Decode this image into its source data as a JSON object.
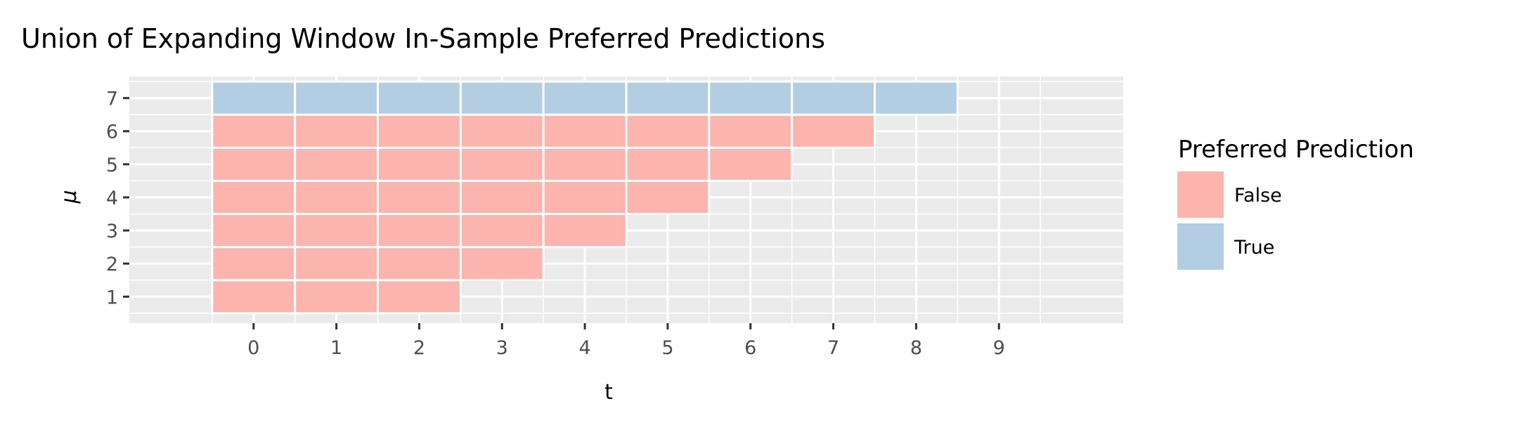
{
  "chart_data": {
    "type": "heatmap",
    "title": "Union of Expanding Window In-Sample Preferred Predictions",
    "xlabel": "t",
    "ylabel": "μ",
    "x_ticks": [
      "0",
      "1",
      "2",
      "3",
      "4",
      "5",
      "6",
      "7",
      "8",
      "9"
    ],
    "y_ticks": [
      "1",
      "2",
      "3",
      "4",
      "5",
      "6",
      "7"
    ],
    "xlim": [
      -1.5,
      10.5
    ],
    "ylim": [
      0.2,
      7.65
    ],
    "grid": true,
    "legend": {
      "title": "Preferred Prediction",
      "placement": "right",
      "entries": [
        {
          "label": "False",
          "color": "#fbb4ae"
        },
        {
          "label": "True",
          "color": "#b3cde3"
        }
      ]
    },
    "cells": [
      {
        "t": 0,
        "mu": 1,
        "value": "False"
      },
      {
        "t": 0,
        "mu": 2,
        "value": "False"
      },
      {
        "t": 0,
        "mu": 3,
        "value": "False"
      },
      {
        "t": 0,
        "mu": 4,
        "value": "False"
      },
      {
        "t": 0,
        "mu": 5,
        "value": "False"
      },
      {
        "t": 0,
        "mu": 6,
        "value": "False"
      },
      {
        "t": 0,
        "mu": 7,
        "value": "True"
      },
      {
        "t": 1,
        "mu": 1,
        "value": "False"
      },
      {
        "t": 1,
        "mu": 2,
        "value": "False"
      },
      {
        "t": 1,
        "mu": 3,
        "value": "False"
      },
      {
        "t": 1,
        "mu": 4,
        "value": "False"
      },
      {
        "t": 1,
        "mu": 5,
        "value": "False"
      },
      {
        "t": 1,
        "mu": 6,
        "value": "False"
      },
      {
        "t": 1,
        "mu": 7,
        "value": "True"
      },
      {
        "t": 2,
        "mu": 1,
        "value": "False"
      },
      {
        "t": 2,
        "mu": 2,
        "value": "False"
      },
      {
        "t": 2,
        "mu": 3,
        "value": "False"
      },
      {
        "t": 2,
        "mu": 4,
        "value": "False"
      },
      {
        "t": 2,
        "mu": 5,
        "value": "False"
      },
      {
        "t": 2,
        "mu": 6,
        "value": "False"
      },
      {
        "t": 2,
        "mu": 7,
        "value": "True"
      },
      {
        "t": 3,
        "mu": 2,
        "value": "False"
      },
      {
        "t": 3,
        "mu": 3,
        "value": "False"
      },
      {
        "t": 3,
        "mu": 4,
        "value": "False"
      },
      {
        "t": 3,
        "mu": 5,
        "value": "False"
      },
      {
        "t": 3,
        "mu": 6,
        "value": "False"
      },
      {
        "t": 3,
        "mu": 7,
        "value": "True"
      },
      {
        "t": 4,
        "mu": 3,
        "value": "False"
      },
      {
        "t": 4,
        "mu": 4,
        "value": "False"
      },
      {
        "t": 4,
        "mu": 5,
        "value": "False"
      },
      {
        "t": 4,
        "mu": 6,
        "value": "False"
      },
      {
        "t": 4,
        "mu": 7,
        "value": "True"
      },
      {
        "t": 5,
        "mu": 4,
        "value": "False"
      },
      {
        "t": 5,
        "mu": 5,
        "value": "False"
      },
      {
        "t": 5,
        "mu": 6,
        "value": "False"
      },
      {
        "t": 5,
        "mu": 7,
        "value": "True"
      },
      {
        "t": 6,
        "mu": 5,
        "value": "False"
      },
      {
        "t": 6,
        "mu": 6,
        "value": "False"
      },
      {
        "t": 6,
        "mu": 7,
        "value": "True"
      },
      {
        "t": 7,
        "mu": 6,
        "value": "False"
      },
      {
        "t": 7,
        "mu": 7,
        "value": "True"
      },
      {
        "t": 8,
        "mu": 7,
        "value": "True"
      }
    ]
  }
}
